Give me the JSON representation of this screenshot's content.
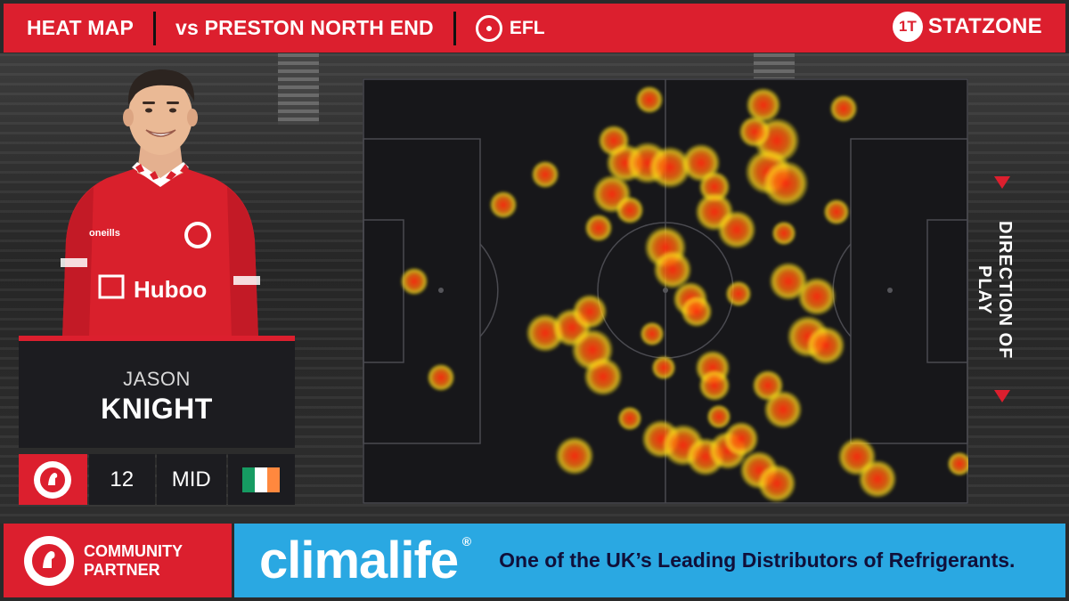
{
  "header": {
    "title": "HEAT MAP",
    "opponent": "vs PRESTON NORTH END",
    "competition": "EFL",
    "brand_mark": "1T",
    "brand": "STATZONE"
  },
  "player": {
    "first_name": "JASON",
    "last_name": "KNIGHT",
    "number": "12",
    "position": "MID",
    "nationality_flag": [
      "#169b62",
      "#ffffff",
      "#ff883e"
    ],
    "shirt_sponsor": "Huboo",
    "kit_maker": "oneills"
  },
  "pitch": {
    "direction_label": "DIRECTION OF PLAY"
  },
  "footer": {
    "partner_line1": "COMMUNITY",
    "partner_line2": "PARTNER",
    "sponsor": "climalife",
    "sponsor_mark": "®",
    "tagline": "One of the UK’s Leading Distributors of Refrigerants."
  },
  "colors": {
    "accent": "#dc1f2e",
    "panel": "#1c1c20",
    "sponsor_blue": "#2aa8e2"
  }
}
